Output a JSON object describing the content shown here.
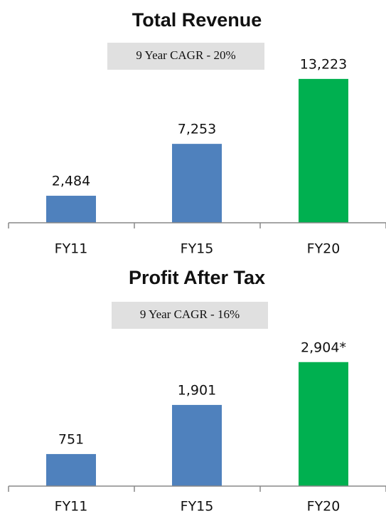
{
  "chart_data": [
    {
      "type": "bar",
      "title": "Total Revenue",
      "annotation": "9 Year CAGR - 20%",
      "categories": [
        "FY11",
        "FY15",
        "FY20"
      ],
      "values": [
        2484,
        7253,
        13223
      ],
      "value_labels": [
        "2,484",
        "7,253",
        "13,223"
      ],
      "colors": [
        "#4f81bd",
        "#4f81bd",
        "#00b050"
      ],
      "ylim": [
        0,
        14000
      ]
    },
    {
      "type": "bar",
      "title": "Profit After Tax",
      "annotation": "9 Year CAGR - 16%",
      "categories": [
        "FY11",
        "FY15",
        "FY20"
      ],
      "values": [
        751,
        1901,
        2904
      ],
      "value_labels": [
        "751",
        "1,901",
        "2,904*"
      ],
      "colors": [
        "#4f81bd",
        "#4f81bd",
        "#00b050"
      ],
      "ylim": [
        0,
        3000
      ]
    }
  ]
}
